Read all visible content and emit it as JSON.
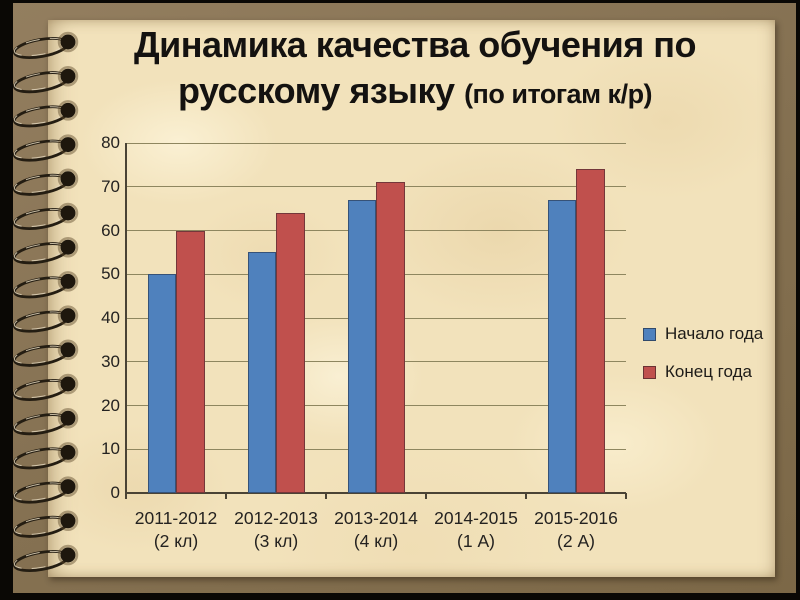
{
  "slide": {
    "title_line1": "Динамика качества обучения по",
    "title_line2": "русскому языку",
    "title_note": "(по итогам к/р)"
  },
  "colors": {
    "frame": "#0a0805",
    "cover_brown": "#867253",
    "paper": "#f2e2bb",
    "gridline": "#8e865f",
    "axis": "#4a4335",
    "text": "#242220",
    "series_start_blue": "#4f81bd",
    "series_end_red": "#c0504d"
  },
  "chart_data": {
    "type": "bar",
    "title": "",
    "categories": [
      "2011-2012",
      "2012-2013",
      "2013-2014",
      "2014-2015",
      "2015-2016"
    ],
    "category_sublabels": [
      "(2 кл)",
      "(3 кл)",
      "(4 кл)",
      "(1 А)",
      "(2 А)"
    ],
    "series": [
      {
        "name": "Начало года",
        "color": "#4f81bd",
        "values": [
          50,
          55,
          67,
          null,
          67
        ]
      },
      {
        "name": "Конец года",
        "color": "#c0504d",
        "values": [
          60,
          64,
          71,
          null,
          74
        ]
      }
    ],
    "ylim": [
      0,
      80
    ],
    "ytick_step": 10,
    "yticks": [
      0,
      10,
      20,
      30,
      40,
      50,
      60,
      70,
      80
    ],
    "grid": true,
    "legend_position": "right",
    "notes": "Category 2014-2015 (1 А) has no bars (no data shown)."
  }
}
